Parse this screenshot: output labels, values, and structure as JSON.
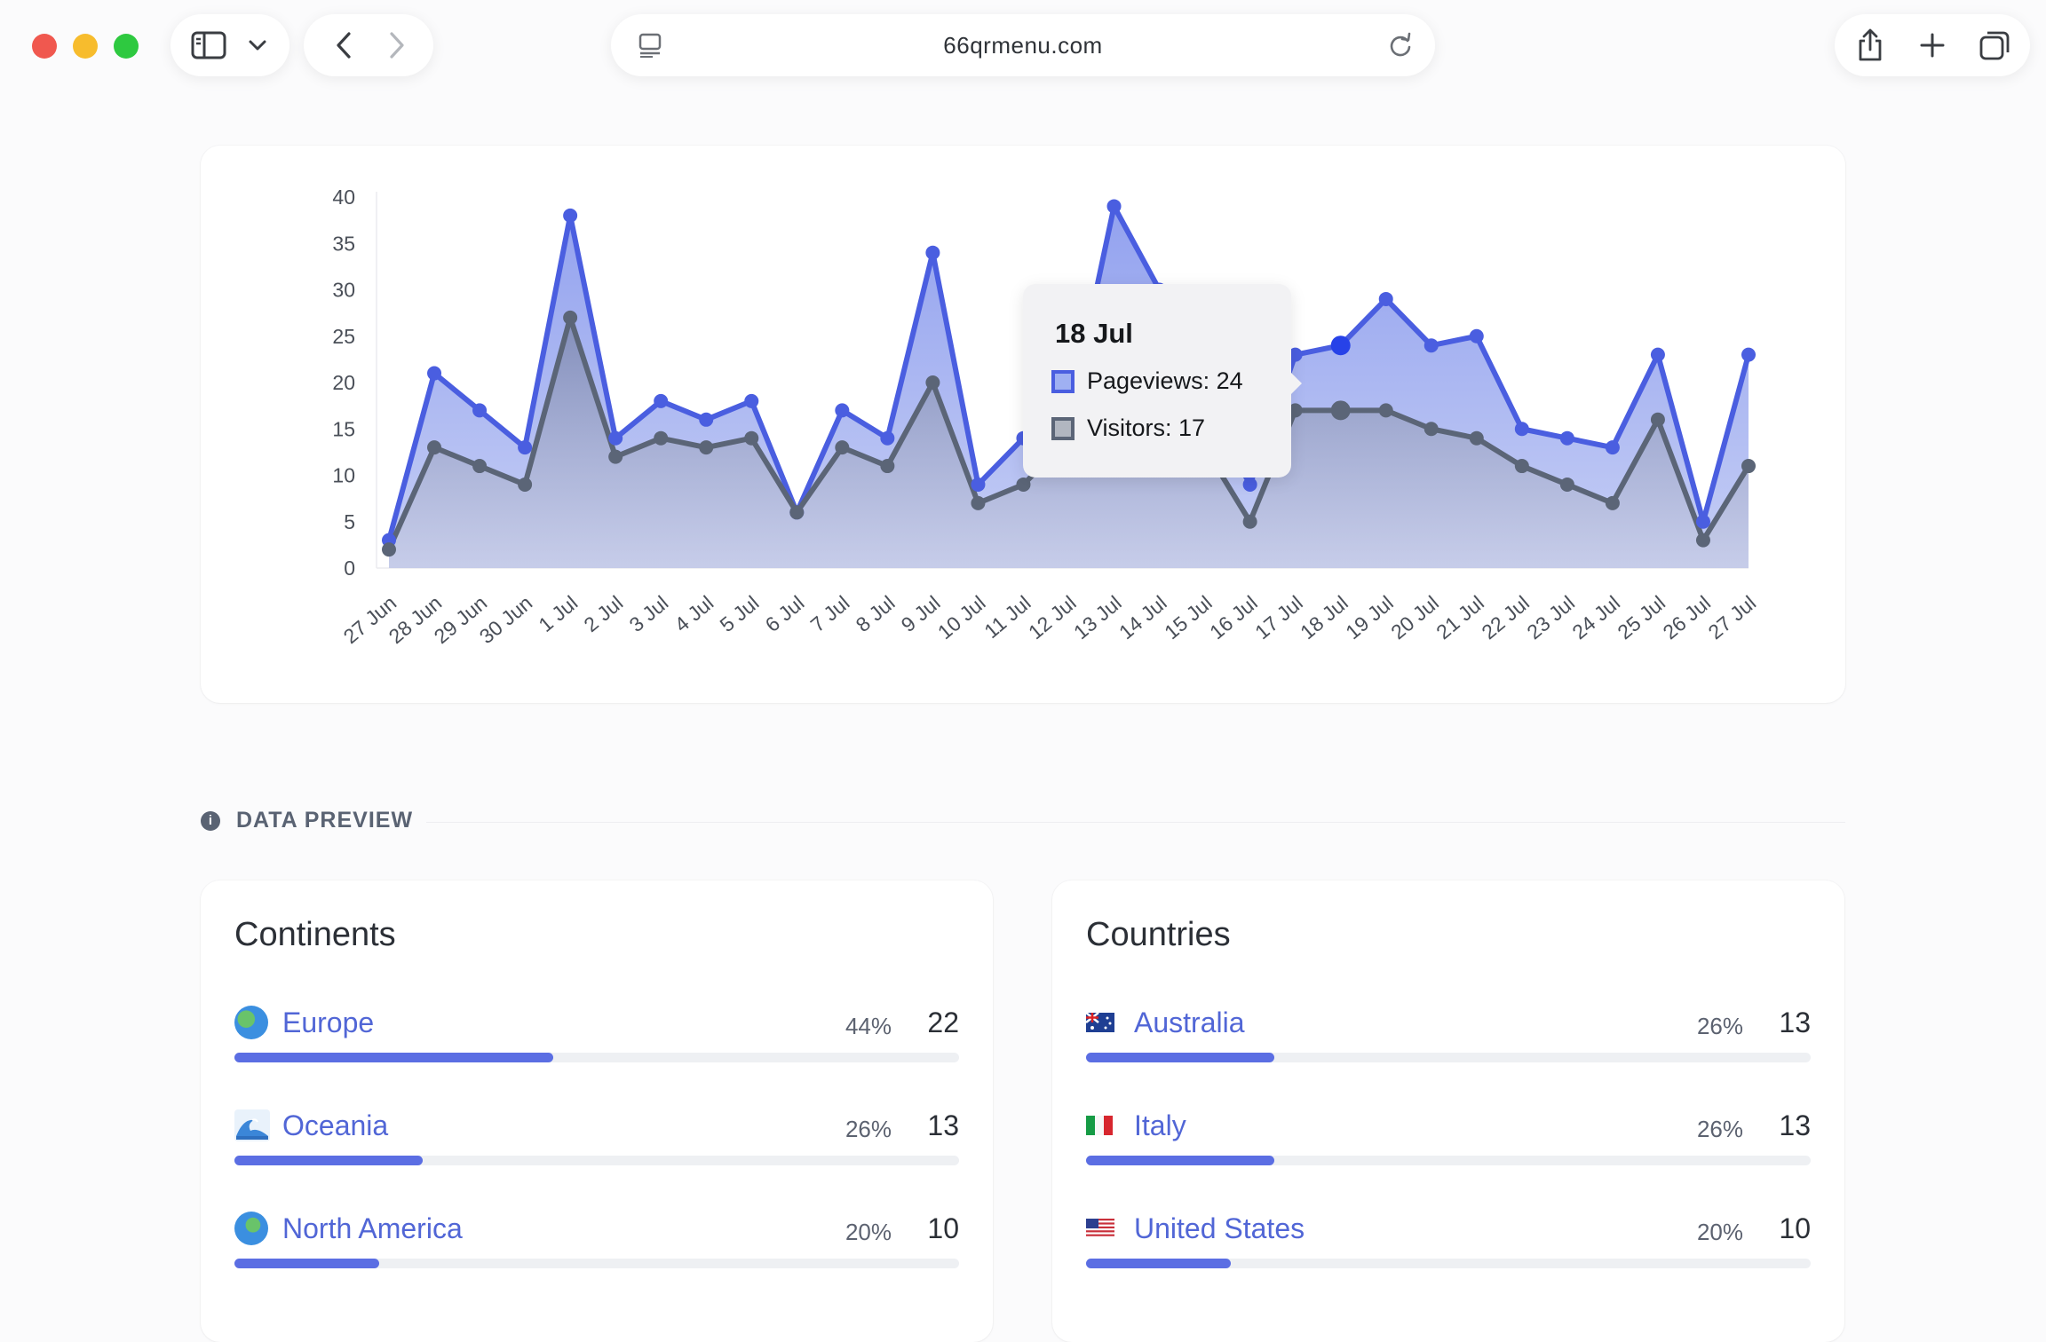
{
  "browser": {
    "url": "66qrmenu.com",
    "icons": [
      "sidebar-icon",
      "chevron-down-icon",
      "back-icon",
      "forward-icon",
      "reader-icon",
      "reload-icon",
      "share-icon",
      "new-tab-icon",
      "tabs-icon"
    ]
  },
  "chart_data": {
    "type": "line",
    "categories": [
      "27 Jun",
      "28 Jun",
      "29 Jun",
      "30 Jun",
      "1 Jul",
      "2 Jul",
      "3 Jul",
      "4 Jul",
      "5 Jul",
      "6 Jul",
      "7 Jul",
      "8 Jul",
      "9 Jul",
      "10 Jul",
      "11 Jul",
      "12 Jul",
      "13 Jul",
      "14 Jul",
      "15 Jul",
      "16 Jul",
      "17 Jul",
      "18 Jul",
      "19 Jul",
      "20 Jul",
      "21 Jul",
      "22 Jul",
      "23 Jul",
      "24 Jul",
      "25 Jul",
      "26 Jul",
      "27 Jul"
    ],
    "series": [
      {
        "name": "Pageviews",
        "color": "#4a5ee0",
        "values": [
          3,
          21,
          17,
          13,
          38,
          14,
          18,
          16,
          18,
          6,
          17,
          14,
          34,
          9,
          14,
          16,
          39,
          30,
          18,
          9,
          23,
          24,
          29,
          24,
          25,
          15,
          14,
          13,
          23,
          5,
          23
        ]
      },
      {
        "name": "Visitors",
        "color": "#5b6577",
        "values": [
          2,
          13,
          11,
          9,
          27,
          12,
          14,
          13,
          14,
          6,
          13,
          11,
          20,
          7,
          9,
          14,
          17,
          17,
          13,
          5,
          17,
          17,
          17,
          15,
          14,
          11,
          9,
          7,
          16,
          3,
          11
        ]
      }
    ],
    "ylim": [
      0,
      40
    ],
    "yticks": [
      0,
      5,
      10,
      15,
      20,
      25,
      30,
      35,
      40
    ],
    "grid": false,
    "highlight_index": 21
  },
  "tooltip": {
    "title": "18 Jul",
    "pageviews": "Pageviews: 24",
    "visitors": "Visitors: 17"
  },
  "section": {
    "title": "DATA PREVIEW"
  },
  "continents": {
    "title": "Continents",
    "items": [
      {
        "icon": "globe-europe-icon",
        "label": "Europe",
        "percent": "44%",
        "count": "22",
        "share": 44
      },
      {
        "icon": "wave-icon",
        "label": "Oceania",
        "percent": "26%",
        "count": "13",
        "share": 26
      },
      {
        "icon": "globe-americas-icon",
        "label": "North America",
        "percent": "20%",
        "count": "10",
        "share": 20
      }
    ]
  },
  "countries": {
    "title": "Countries",
    "items": [
      {
        "icon": "flag-australia-icon",
        "label": "Australia",
        "percent": "26%",
        "count": "13",
        "share": 26
      },
      {
        "icon": "flag-italy-icon",
        "label": "Italy",
        "percent": "26%",
        "count": "13",
        "share": 26
      },
      {
        "icon": "flag-united-states-icon",
        "label": "United States",
        "percent": "20%",
        "count": "10",
        "share": 20
      }
    ]
  }
}
